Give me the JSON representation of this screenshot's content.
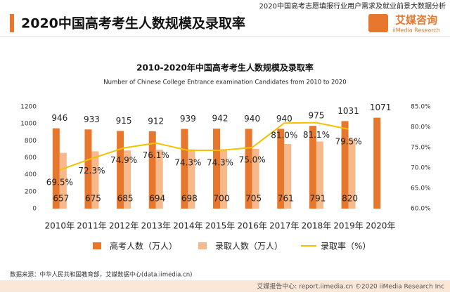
{
  "header": {
    "report": "2020中国高考志愿填报行业用户需求及就业前景大数据分析",
    "title": "2020中国高考考生人数规模及录取率",
    "logo": "艾媒咨询",
    "logo_en": "iiMedia Research"
  },
  "chart_data": {
    "type": "bar-line",
    "title": "2010-2020年中国高考考生人数规模及录取率",
    "subtitle": "Number of Chinese College Entrance examination Candidates from 2010 to 2020",
    "categories": [
      "2010年",
      "2011年",
      "2012年",
      "2013年",
      "2014年",
      "2015年",
      "2016年",
      "2017年",
      "2018年",
      "2019年",
      "2020年"
    ],
    "series": [
      {
        "name": "高考人数（万人）",
        "type": "bar",
        "color": "#e8772e",
        "values": [
          946,
          933,
          915,
          912,
          939,
          942,
          940,
          940,
          975,
          1031,
          1071
        ]
      },
      {
        "name": "录取人数（万人）",
        "type": "bar",
        "color": "#f6b98c",
        "values": [
          657,
          675,
          685,
          694,
          698,
          700,
          705,
          761,
          791,
          820,
          null
        ]
      },
      {
        "name": "录取率（%）",
        "type": "line",
        "axis": "y2",
        "color": "#f2c100",
        "values": [
          69.5,
          72.3,
          74.9,
          76.1,
          74.3,
          74.3,
          75.0,
          81.0,
          81.1,
          79.5,
          null
        ],
        "value_labels": [
          "69.5%",
          "72.3%",
          "74.9%",
          "76.1%",
          "74.3%",
          "74.3%",
          "75.0%",
          "81.0%",
          "81.1%",
          "79.5%",
          null
        ]
      }
    ],
    "ylim": [
      0,
      1200
    ],
    "yticks": [
      0,
      200,
      400,
      600,
      800,
      1000,
      1200
    ],
    "y2lim": [
      60,
      85
    ],
    "y2ticks": [
      {
        "value": 60,
        "label": "60.0%"
      },
      {
        "value": 65,
        "label": "65.0%"
      },
      {
        "value": 70,
        "label": "70.0%"
      },
      {
        "value": 75,
        "label": "75.0%"
      },
      {
        "value": 80,
        "label": "80.0%"
      },
      {
        "value": 85,
        "label": "85.0%"
      }
    ],
    "grid": false
  },
  "footer": {
    "source": "数据来源：中华人民共和国教育部，艾媒数据中心(data.iimedia.cn)",
    "bar": "艾媒报告中心: report.iimedia.cn ©2020 iiMedia Research Inc"
  }
}
